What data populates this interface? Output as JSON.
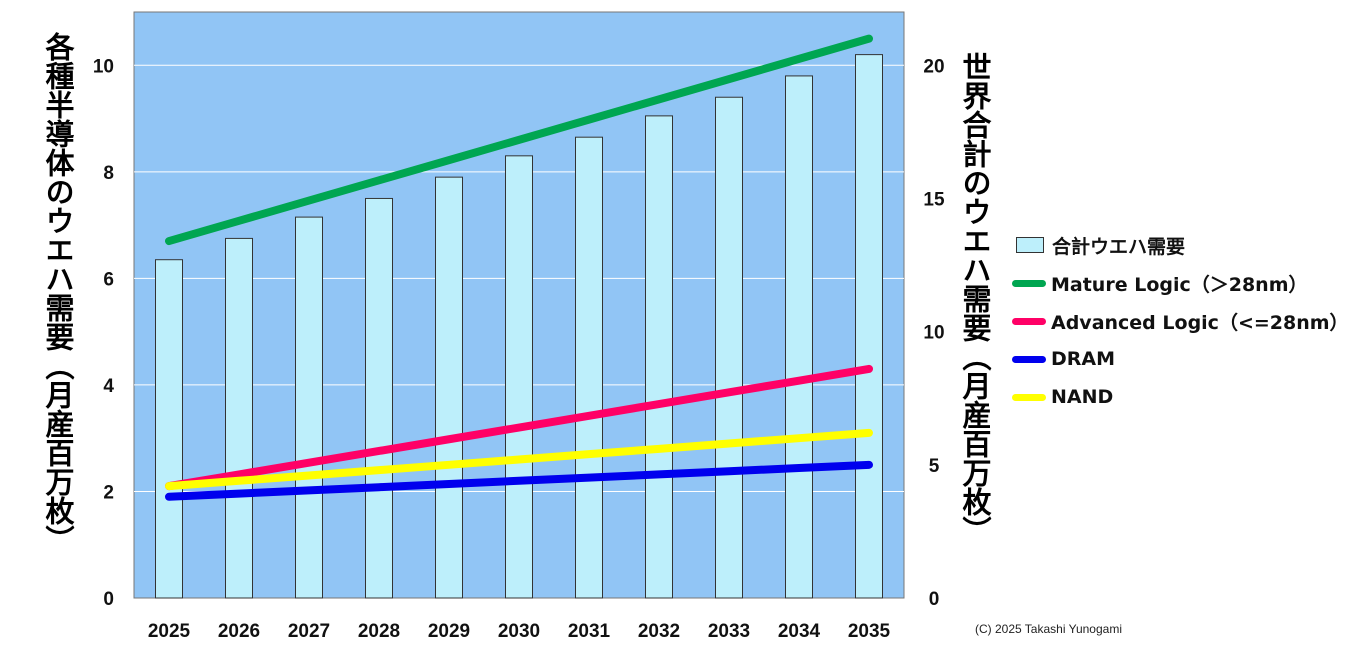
{
  "chart_data": {
    "type": "bar+line",
    "categories": [
      "2025",
      "2026",
      "2027",
      "2028",
      "2029",
      "2030",
      "2031",
      "2032",
      "2033",
      "2034",
      "2035"
    ],
    "bar_series": {
      "name": "合計ウエハ需要",
      "axis": "right",
      "values": [
        12.7,
        13.5,
        14.3,
        15.0,
        15.8,
        16.6,
        17.3,
        18.1,
        18.8,
        19.6,
        20.4
      ],
      "color": "#bdeffb"
    },
    "line_series": [
      {
        "name": "Mature Logic（＞28nm）",
        "axis": "left",
        "color": "#00a651",
        "values": [
          6.7,
          7.08,
          7.46,
          7.84,
          8.22,
          8.6,
          8.98,
          9.36,
          9.74,
          10.12,
          10.5
        ]
      },
      {
        "name": "Advanced Logic（<=28nm）",
        "axis": "left",
        "color": "#ff0066",
        "values": [
          2.1,
          2.32,
          2.54,
          2.76,
          2.98,
          3.2,
          3.42,
          3.64,
          3.86,
          4.08,
          4.3
        ]
      },
      {
        "name": "DRAM",
        "axis": "left",
        "color": "#0000ee",
        "values": [
          1.9,
          1.96,
          2.02,
          2.08,
          2.14,
          2.2,
          2.26,
          2.32,
          2.38,
          2.44,
          2.5
        ]
      },
      {
        "name": "NAND",
        "axis": "left",
        "color": "#ffff00",
        "values": [
          2.1,
          2.2,
          2.3,
          2.4,
          2.5,
          2.6,
          2.7,
          2.8,
          2.9,
          3.0,
          3.1
        ]
      }
    ],
    "y_left": {
      "label": "各種半導体のウエハ需要（月産百万枚）",
      "min": 0,
      "max": 11,
      "ticks": [
        "0",
        "2",
        "4",
        "6",
        "8",
        "10"
      ]
    },
    "y_right": {
      "label": "世界合計のウエハ需要（月産百万枚）",
      "min": 0,
      "max": 22,
      "ticks": [
        "0",
        "5",
        "10",
        "15",
        "20"
      ]
    },
    "plot_background": "#91c5f5",
    "grid": true,
    "legend_position": "right"
  },
  "copyright": "(C) 2025 Takashi Yunogami"
}
